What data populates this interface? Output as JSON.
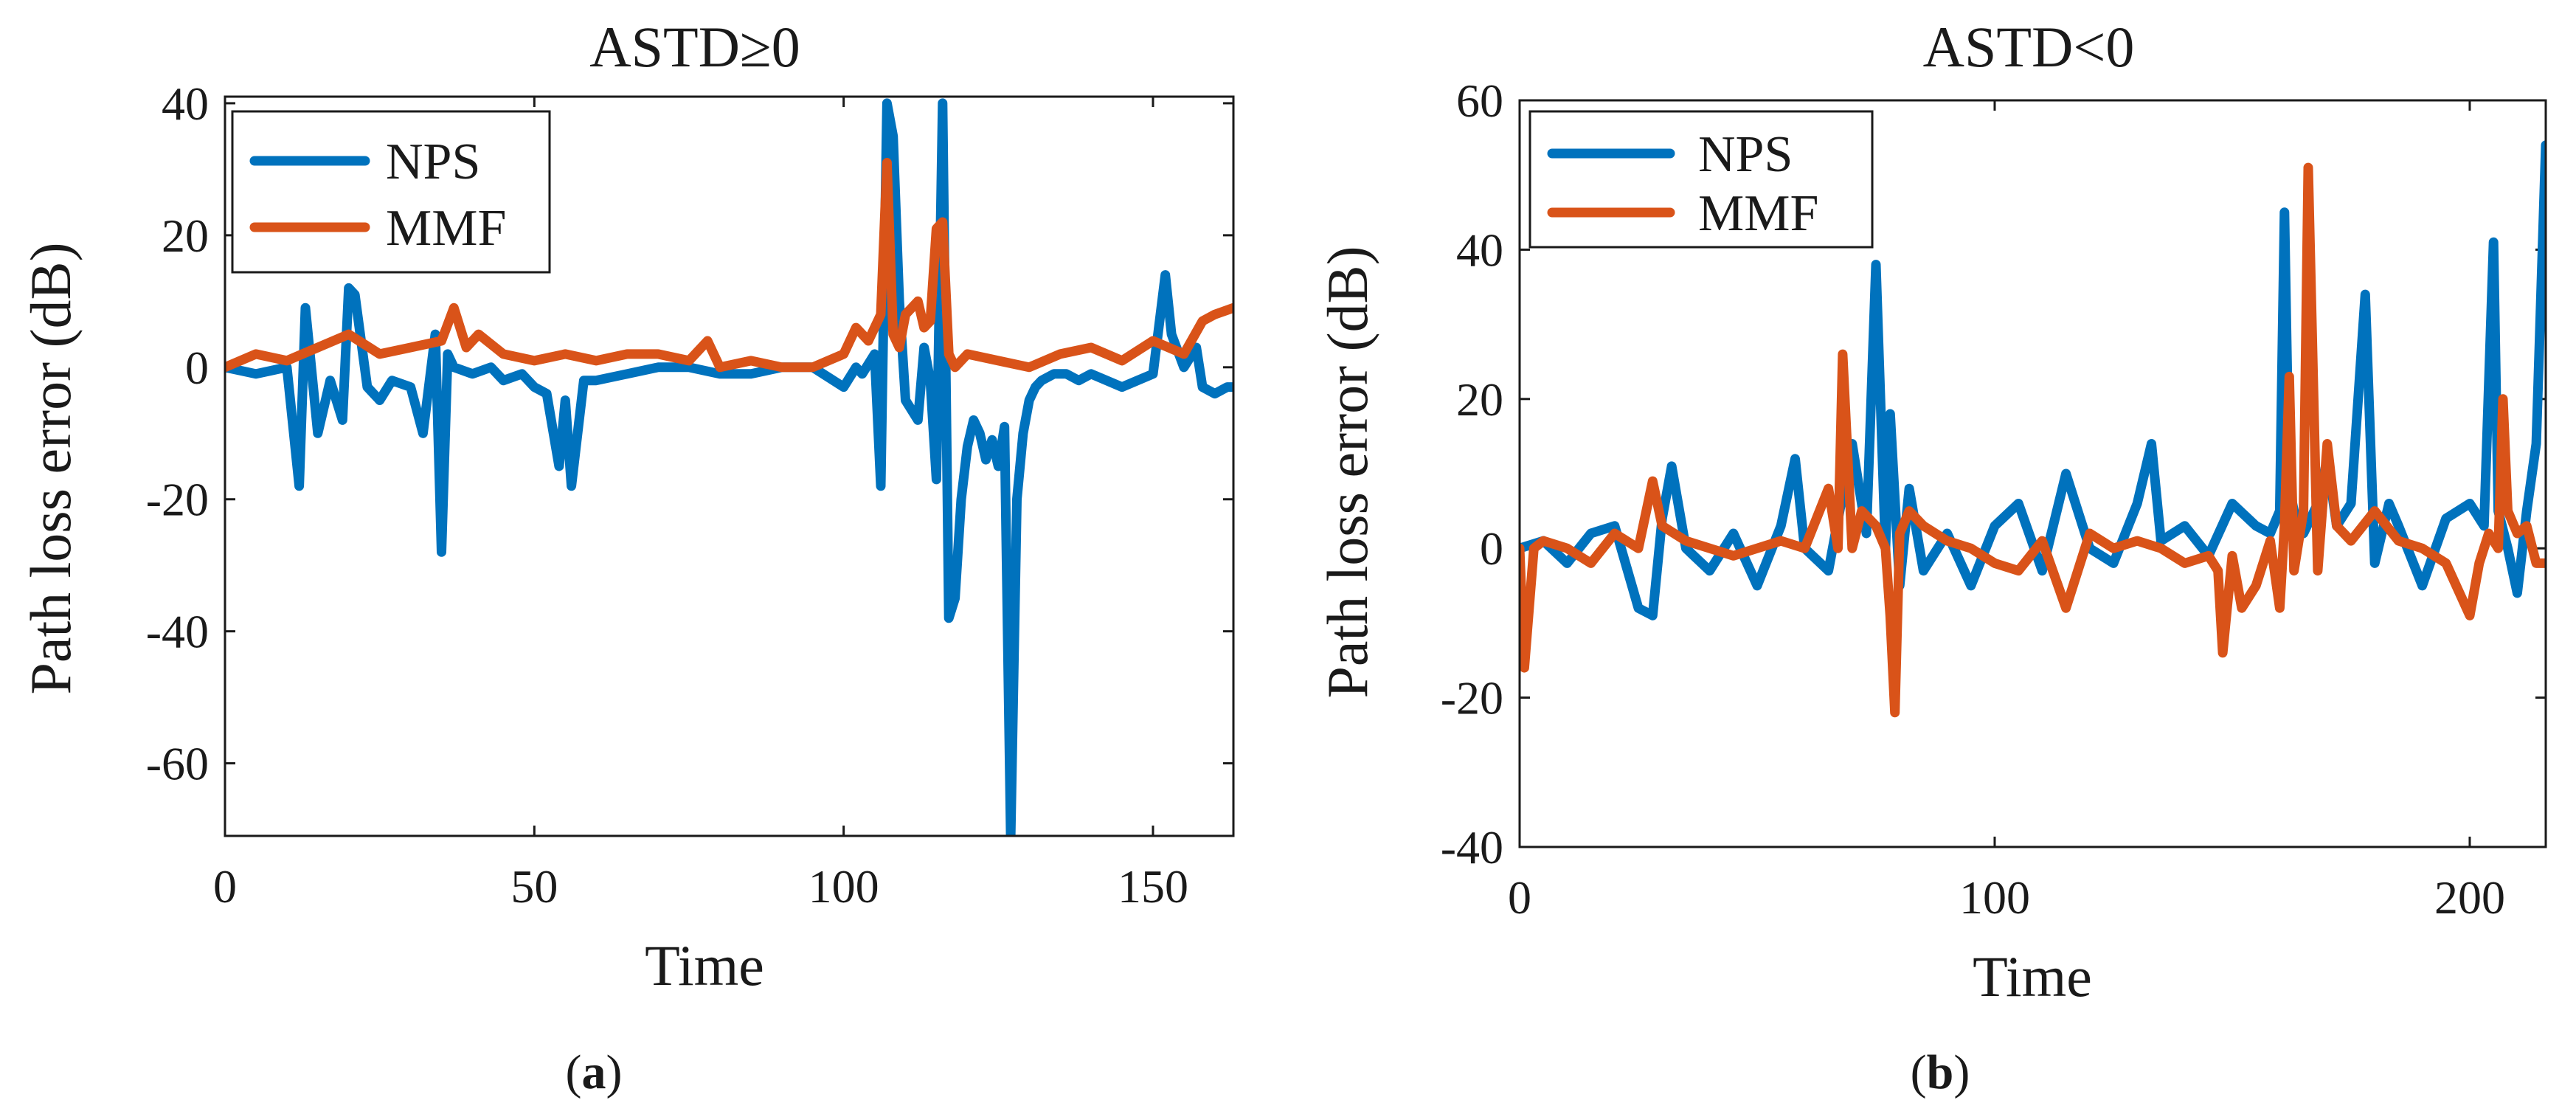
{
  "chart_data": [
    {
      "type": "line",
      "title": "ASTD≥0",
      "xlabel": "Time",
      "ylabel": "Path loss error (dB)",
      "panel_label": "a",
      "xlim": [
        0,
        163
      ],
      "ylim": [
        -71,
        41
      ],
      "xticks": [
        0,
        50,
        100,
        150
      ],
      "yticks": [
        -60,
        -40,
        -20,
        0,
        20,
        40
      ],
      "legend_position": "top-left",
      "series": [
        {
          "name": "NPS",
          "color": "#0072BD",
          "x": [
            0,
            5,
            10,
            12,
            13,
            15,
            17,
            19,
            20,
            21,
            23,
            25,
            27,
            30,
            32,
            34,
            35,
            36,
            37,
            40,
            43,
            45,
            48,
            50,
            52,
            54,
            55,
            56,
            58,
            60,
            65,
            70,
            75,
            80,
            85,
            90,
            95,
            100,
            102,
            103,
            105,
            106,
            107,
            108,
            109,
            110,
            112,
            113,
            114,
            115,
            116,
            117,
            118,
            119,
            120,
            121,
            122,
            123,
            124,
            125,
            126,
            127,
            128,
            129,
            130,
            131,
            132,
            134,
            136,
            138,
            140,
            145,
            150,
            152,
            153,
            155,
            157,
            158,
            160,
            162,
            163
          ],
          "y": [
            0,
            -1,
            0,
            -18,
            9,
            -10,
            -2,
            -8,
            12,
            11,
            -3,
            -5,
            -2,
            -3,
            -10,
            5,
            -28,
            2,
            0,
            -1,
            0,
            -2,
            -1,
            -3,
            -4,
            -15,
            -5,
            -18,
            -2,
            -2,
            -1,
            0,
            0,
            -1,
            -1,
            0,
            0,
            -3,
            0,
            -1,
            2,
            -18,
            40,
            35,
            10,
            -5,
            -8,
            3,
            -2,
            -17,
            40,
            -38,
            -35,
            -20,
            -12,
            -8,
            -10,
            -14,
            -11,
            -15,
            -9,
            -71,
            -20,
            -10,
            -5,
            -3,
            -2,
            -1,
            -1,
            -2,
            -1,
            -3,
            -1,
            14,
            5,
            0,
            3,
            -3,
            -4,
            -3,
            -3
          ]
        },
        {
          "name": "MMF",
          "color": "#D95319",
          "x": [
            0,
            5,
            10,
            15,
            20,
            25,
            30,
            35,
            37,
            39,
            41,
            45,
            50,
            55,
            60,
            65,
            70,
            75,
            78,
            80,
            85,
            90,
            95,
            100,
            102,
            104,
            106,
            107,
            108,
            109,
            110,
            112,
            113,
            114,
            115,
            116,
            117,
            118,
            120,
            125,
            130,
            135,
            140,
            145,
            150,
            155,
            158,
            160,
            163
          ],
          "y": [
            0,
            2,
            1,
            3,
            5,
            2,
            3,
            4,
            9,
            3,
            5,
            2,
            1,
            2,
            1,
            2,
            2,
            1,
            4,
            0,
            1,
            0,
            0,
            2,
            6,
            4,
            8,
            31,
            5,
            3,
            8,
            10,
            6,
            7,
            21,
            22,
            2,
            0,
            2,
            1,
            0,
            2,
            3,
            1,
            4,
            2,
            7,
            8,
            9
          ]
        }
      ]
    },
    {
      "type": "line",
      "title": "ASTD<0",
      "xlabel": "Time",
      "ylabel": "Path loss error (dB)",
      "panel_label": "b",
      "xlim": [
        0,
        216
      ],
      "ylim": [
        -40,
        60
      ],
      "xticks": [
        0,
        100,
        200
      ],
      "yticks": [
        -40,
        -20,
        0,
        20,
        40,
        60
      ],
      "legend_position": "top-left",
      "series": [
        {
          "name": "NPS",
          "color": "#0072BD",
          "x": [
            0,
            5,
            10,
            15,
            20,
            25,
            28,
            30,
            32,
            35,
            40,
            45,
            50,
            55,
            58,
            60,
            65,
            70,
            73,
            75,
            77,
            78,
            80,
            82,
            85,
            90,
            95,
            100,
            105,
            110,
            115,
            120,
            125,
            130,
            133,
            135,
            140,
            145,
            150,
            155,
            158,
            160,
            161,
            162,
            163,
            165,
            168,
            170,
            172,
            175,
            178,
            180,
            183,
            185,
            190,
            195,
            200,
            203,
            205,
            206,
            208,
            210,
            212,
            214,
            216
          ],
          "y": [
            0,
            1,
            -2,
            2,
            3,
            -8,
            -9,
            4,
            11,
            0,
            -3,
            2,
            -5,
            3,
            12,
            0,
            -3,
            14,
            2,
            38,
            0,
            18,
            -5,
            8,
            -3,
            2,
            -5,
            3,
            6,
            -3,
            10,
            0,
            -2,
            6,
            14,
            1,
            3,
            -1,
            6,
            3,
            2,
            5,
            45,
            8,
            5,
            2,
            6,
            12,
            3,
            6,
            34,
            -2,
            6,
            3,
            -5,
            4,
            6,
            3,
            41,
            5,
            0,
            -6,
            5,
            14,
            54
          ]
        },
        {
          "name": "MMF",
          "color": "#D95319",
          "x": [
            0,
            1,
            3,
            5,
            10,
            15,
            20,
            25,
            28,
            30,
            35,
            40,
            45,
            50,
            55,
            60,
            65,
            67,
            68,
            70,
            72,
            75,
            77,
            78,
            79,
            80,
            82,
            85,
            90,
            95,
            100,
            105,
            110,
            115,
            120,
            125,
            130,
            135,
            140,
            145,
            147,
            148,
            150,
            152,
            155,
            158,
            160,
            161,
            162,
            163,
            165,
            166,
            168,
            170,
            172,
            175,
            180,
            185,
            190,
            195,
            200,
            202,
            204,
            206,
            207,
            208,
            210,
            212,
            214,
            216
          ],
          "y": [
            0,
            -16,
            0,
            1,
            0,
            -2,
            2,
            0,
            9,
            3,
            1,
            0,
            -1,
            0,
            1,
            0,
            8,
            0,
            26,
            0,
            5,
            3,
            0,
            -9,
            -22,
            2,
            5,
            3,
            1,
            0,
            -2,
            -3,
            1,
            -8,
            2,
            0,
            1,
            0,
            -2,
            -1,
            -3,
            -14,
            -1,
            -8,
            -5,
            1,
            -8,
            3,
            23,
            -3,
            5,
            51,
            -3,
            14,
            3,
            1,
            5,
            1,
            0,
            -2,
            -9,
            -2,
            2,
            0,
            20,
            5,
            2,
            3,
            -2,
            -2
          ]
        }
      ]
    }
  ]
}
